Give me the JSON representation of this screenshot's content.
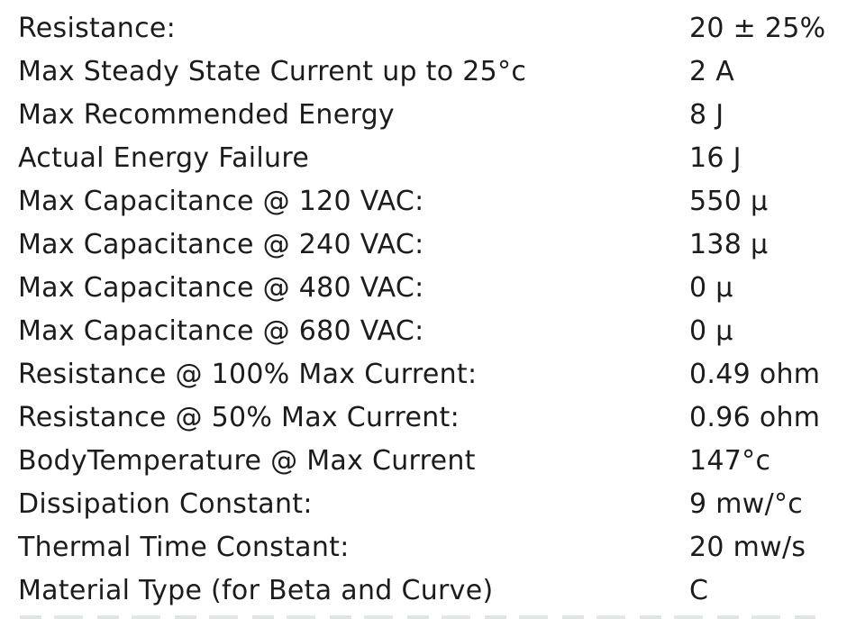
{
  "colors": {
    "background": "#ffffff",
    "text": "#1c1c1c"
  },
  "spec_table": {
    "rows": [
      {
        "label": "Resistance:",
        "value": "20 ± 25%"
      },
      {
        "label": "Max Steady State Current up to 25°c",
        "value": "2 A"
      },
      {
        "label": "Max Recommended Energy",
        "value": "8 J"
      },
      {
        "label": "Actual Energy Failure",
        "value": "16 J"
      },
      {
        "label": "Max Capacitance @ 120 VAC:",
        "value": "550 µ"
      },
      {
        "label": "Max Capacitance @ 240 VAC:",
        "value": "138 µ"
      },
      {
        "label": "Max Capacitance @ 480 VAC:",
        "value": "0 µ"
      },
      {
        "label": "Max Capacitance @ 680 VAC:",
        "value": "0 µ"
      },
      {
        "label": "Resistance @ 100% Max Current:",
        "value": "0.49 ohm"
      },
      {
        "label": "Resistance @ 50% Max Current:",
        "value": "0.96 ohm"
      },
      {
        "label": "BodyTemperature @ Max Current",
        "value": "147°c"
      },
      {
        "label": "Dissipation Constant:",
        "value": "9 mw/°c"
      },
      {
        "label": "Thermal Time Constant:",
        "value": "20 mw/s"
      },
      {
        "label": "Material Type (for Beta and Curve)",
        "value": "C"
      }
    ]
  }
}
